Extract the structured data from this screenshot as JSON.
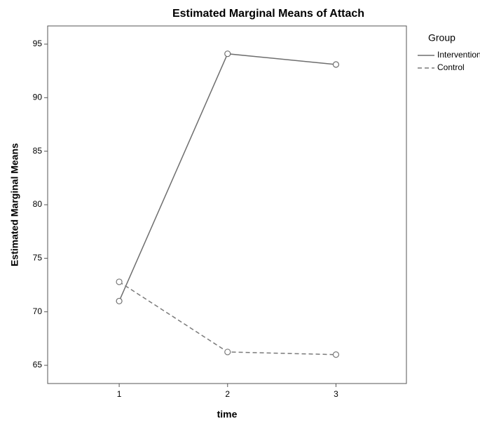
{
  "chart_data": {
    "type": "line",
    "title": "Estimated Marginal Means of Attach",
    "x_label": "time",
    "y_label": "Estimated Marginal Means",
    "x": [
      1,
      2,
      3
    ],
    "xlim": [
      0.34,
      3.65
    ],
    "xticks": [
      1,
      2,
      3
    ],
    "ylim": [
      63.3,
      96.7
    ],
    "yticks": [
      65,
      70,
      75,
      80,
      85,
      90,
      95
    ],
    "legend_title": "Group",
    "legend_position": "outside-right",
    "series": [
      {
        "name": "Intervention",
        "color": "#6e6e6e",
        "line_style": "solid",
        "values": [
          71.0,
          94.1,
          93.1
        ]
      },
      {
        "name": "Control",
        "color": "#7a7a7a",
        "line_style": "dashed",
        "values": [
          72.8,
          66.25,
          66.0
        ]
      }
    ]
  }
}
